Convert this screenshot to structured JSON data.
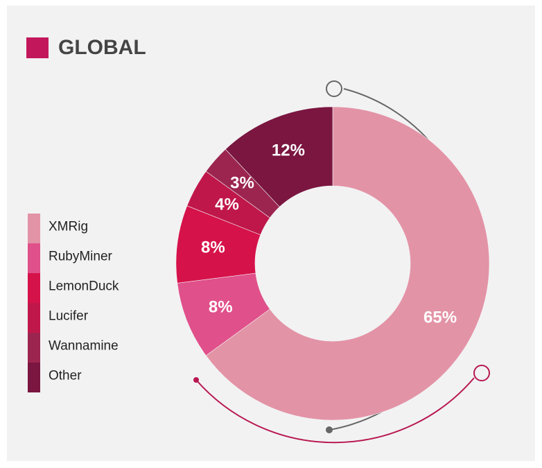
{
  "chart_data": {
    "type": "donut",
    "title": "GLOBAL",
    "categories": [
      "XMRig",
      "RubyMiner",
      "LemonDuck",
      "Lucifer",
      "Wannamine",
      "Other"
    ],
    "values": [
      65,
      8,
      8,
      4,
      3,
      12
    ],
    "value_labels": [
      "65%",
      "8%",
      "8%",
      "4%",
      "3%",
      "12%"
    ],
    "colors": [
      "#e393a6",
      "#e0508a",
      "#d6124a",
      "#c0174a",
      "#9c2550",
      "#7a1640"
    ],
    "title_color": "#c2185b",
    "legend": "left"
  }
}
